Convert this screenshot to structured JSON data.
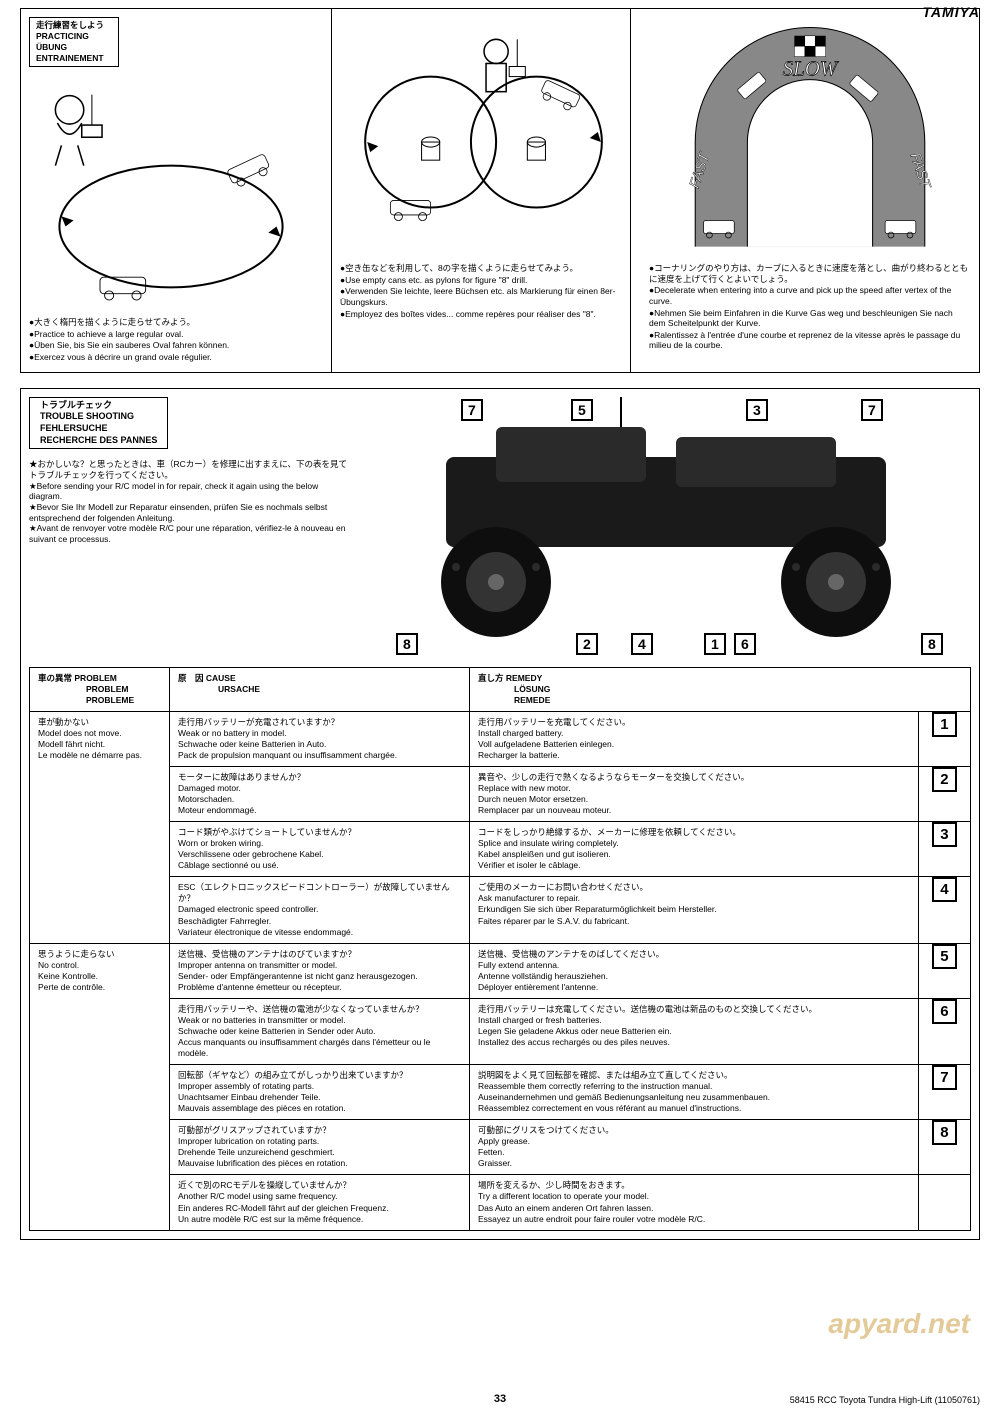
{
  "brand": "TAMIYA",
  "page_number": "33",
  "page_reference": "58415 RCC Toyota Tundra High-Lift (11050761)",
  "watermark": "apyard.net",
  "practicing": {
    "header": {
      "jp": "走行練習をしよう",
      "en": "PRACTICING",
      "de": "ÜBUNG",
      "fr": "ENTRAINEMENT"
    },
    "col1": {
      "jp": "●大きく楕円を描くように走らせてみよう。",
      "en": "●Practice to achieve a large regular oval.",
      "de": "●Üben Sie, bis Sie ein sauberes Oval fahren können.",
      "fr": "●Exercez vous à décrire un grand ovale régulier."
    },
    "col2": {
      "jp": "●空き缶などを利用して、8の字を描くように走らせてみよう。",
      "en": "●Use empty cans etc. as pylons for figure \"8\" drill.",
      "de": "●Verwenden Sie leichte, leere Büchsen etc. als Markierung für einen 8er-Übungskurs.",
      "fr": "●Employez des boîtes vides... comme repères pour réaliser des \"8\"."
    },
    "col3": {
      "slow": "SLOW",
      "fast_l": "FAST",
      "fast_r": "FAST",
      "jp": "●コーナリングのやり方は、カーブに入るときに速度を落とし、曲がり終わるとともに速度を上げて行くとよいでしょう。",
      "en": "●Decelerate when entering into a curve and pick up the speed after vertex of the curve.",
      "de": "●Nehmen Sie beim Einfahren in die Kurve Gas weg und beschleunigen Sie nach dem Scheitelpunkt der Kurve.",
      "fr": "●Ralentissez à l'entrée d'une courbe et reprenez de la vitesse après le passage du milieu de la courbe."
    }
  },
  "troubleshooting": {
    "header": {
      "jp": "トラブルチェック",
      "en": "TROUBLE SHOOTING",
      "de": "FEHLERSUCHE",
      "fr": "RECHERCHE DES PANNES"
    },
    "intro": {
      "jp": "★おかしいな？と思ったときは、車（RCカー）を修理に出すまえに、下の表を見てトラブルチェックを行ってください。",
      "en": "★Before sending your R/C model in for repair, check it again using the below diagram.",
      "de": "★Bevor Sie Ihr Modell zur Reparatur einsenden, prüfen Sie es nochmals selbst entsprechend der folgenden Anleitung.",
      "fr": "★Avant de renvoyer votre modèle R/C pour une réparation, vérifiez-le à nouveau en suivant ce processus."
    },
    "callouts": [
      "7",
      "5",
      "3",
      "7",
      "8",
      "2",
      "4",
      "1",
      "6",
      "8"
    ],
    "table": {
      "headers": {
        "problem": {
          "jp": "車の異常",
          "en": "PROBLEM",
          "de": "PROBLEM",
          "fr": "PROBLEME"
        },
        "cause": {
          "jp": "原　因",
          "en": "CAUSE",
          "de": "URSACHE"
        },
        "remedy": {
          "jp": "直し方",
          "en": "REMEDY",
          "de": "LÖSUNG",
          "fr": "REMEDE"
        }
      },
      "groups": [
        {
          "problem": {
            "jp": "車が動かない",
            "en": "Model does not move.",
            "de": "Modell fährt nicht.",
            "fr": "Le modèle ne démarre pas."
          },
          "rows": [
            {
              "num": "1",
              "cause": {
                "jp": "走行用バッテリーが充電されていますか？",
                "en": "Weak or no battery in model.",
                "de": "Schwache oder keine Batterien in Auto.",
                "fr": "Pack de propulsion manquant ou insuffisamment chargée."
              },
              "remedy": {
                "jp": "走行用バッテリーを充電してください。",
                "en": "Install charged battery.",
                "de": "Voll aufgeladene Batterien einlegen.",
                "fr": "Recharger la batterie."
              }
            },
            {
              "num": "2",
              "cause": {
                "jp": "モーターに故障はありませんか？",
                "en": "Damaged motor.",
                "de": "Motorschaden.",
                "fr": "Moteur endommagé."
              },
              "remedy": {
                "jp": "異音や、少しの走行で熱くなるようならモーターを交換してください。",
                "en": "Replace with new motor.",
                "de": "Durch neuen Motor ersetzen.",
                "fr": "Remplacer par un nouveau moteur."
              }
            },
            {
              "num": "3",
              "cause": {
                "jp": "コード類がやぶけてショートしていませんか？",
                "en": "Worn or broken wiring.",
                "de": "Verschlissene oder gebrochene Kabel.",
                "fr": "Câblage sectionné ou usé."
              },
              "remedy": {
                "jp": "コードをしっかり絶縁するか、メーカーに修理を依頼してください。",
                "en": "Splice and insulate wiring completely.",
                "de": "Kabel anspleißen und gut isolieren.",
                "fr": "Vérifier et isoler le câblage."
              }
            },
            {
              "num": "4",
              "cause": {
                "jp": "ESC（エレクトロニックスピードコントローラー）が故障していませんか？",
                "en": "Damaged electronic speed controller.",
                "de": "Beschädigter Fahrregler.",
                "fr": "Variateur électronique de vitesse endommagé."
              },
              "remedy": {
                "jp": "ご使用のメーカーにお問い合わせください。",
                "en": "Ask manufacturer to repair.",
                "de": "Erkundigen Sie sich über Reparaturmöglichkeit beim Hersteller.",
                "fr": "Faites réparer par le S.A.V. du fabricant."
              }
            }
          ]
        },
        {
          "problem": {
            "jp": "思うように走らない",
            "en": "No control.",
            "de": "Keine Kontrolle.",
            "fr": "Perte de contrôle."
          },
          "rows": [
            {
              "num": "5",
              "cause": {
                "jp": "送信機、受信機のアンテナはのびていますか？",
                "en": "Improper antenna on transmitter or model.",
                "de": "Sender- oder Empfängerantenne ist nicht ganz herausgezogen.",
                "fr": "Problème d'antenne émetteur ou récepteur."
              },
              "remedy": {
                "jp": "送信機、受信機のアンテナをのばしてください。",
                "en": "Fully extend antenna.",
                "de": "Antenne vollständig herausziehen.",
                "fr": "Déployer entièrement l'antenne."
              }
            },
            {
              "num": "6",
              "cause": {
                "jp": "走行用バッテリーや、送信機の電池が少なくなっていませんか？",
                "en": "Weak or no batteries in transmitter or model.",
                "de": "Schwache oder keine Batterien in Sender oder Auto.",
                "fr": "Accus manquants ou insuffisamment chargés dans l'émetteur ou le modèle."
              },
              "remedy": {
                "jp": "走行用バッテリーは充電してください。送信機の電池は新品のものと交換してください。",
                "en": "Install charged or fresh batteries.",
                "de": "Legen Sie geladene Akkus oder neue Batterien ein.",
                "fr": "Installez des accus rechargés ou des piles neuves."
              }
            },
            {
              "num": "7",
              "cause": {
                "jp": "回転部（ギヤなど）の組み立てがしっかり出来ていますか？",
                "en": "Improper assembly of rotating parts.",
                "de": "Unachtsamer Einbau drehender Teile.",
                "fr": "Mauvais assemblage des pièces en rotation."
              },
              "remedy": {
                "jp": "説明図をよく見て回転部を確認、または組み立て直してください。",
                "en": "Reassemble them correctly referring to the instruction manual.",
                "de": "Auseinandernehmen und gemäß Bedienungsanleitung neu zusammenbauen.",
                "fr": "Réassemblez correctement en vous référant au manuel d'instructions."
              }
            },
            {
              "num": "8",
              "cause": {
                "jp": "可動部がグリスアップされていますか？",
                "en": "Improper lubrication on rotating parts.",
                "de": "Drehende Teile unzureichend geschmiert.",
                "fr": "Mauvaise lubrification des pièces en rotation."
              },
              "remedy": {
                "jp": "可動部にグリスをつけてください。",
                "en": "Apply grease.",
                "de": "Fetten.",
                "fr": "Graisser."
              }
            },
            {
              "num": "",
              "cause": {
                "jp": "近くで別のRCモデルを操縦していませんか？",
                "en": "Another R/C model using same frequency.",
                "de": "Ein anderes RC-Modell fährt auf der gleichen Frequenz.",
                "fr": "Un autre modèle R/C est sur la même fréquence."
              },
              "remedy": {
                "jp": "場所を変えるか、少し時間をおきます。",
                "en": "Try a different location to operate your model.",
                "de": "Das Auto an einem anderen Ort fahren lassen.",
                "fr": "Essayez un autre endroit pour faire rouler votre modèle R/C."
              }
            }
          ]
        }
      ]
    }
  }
}
